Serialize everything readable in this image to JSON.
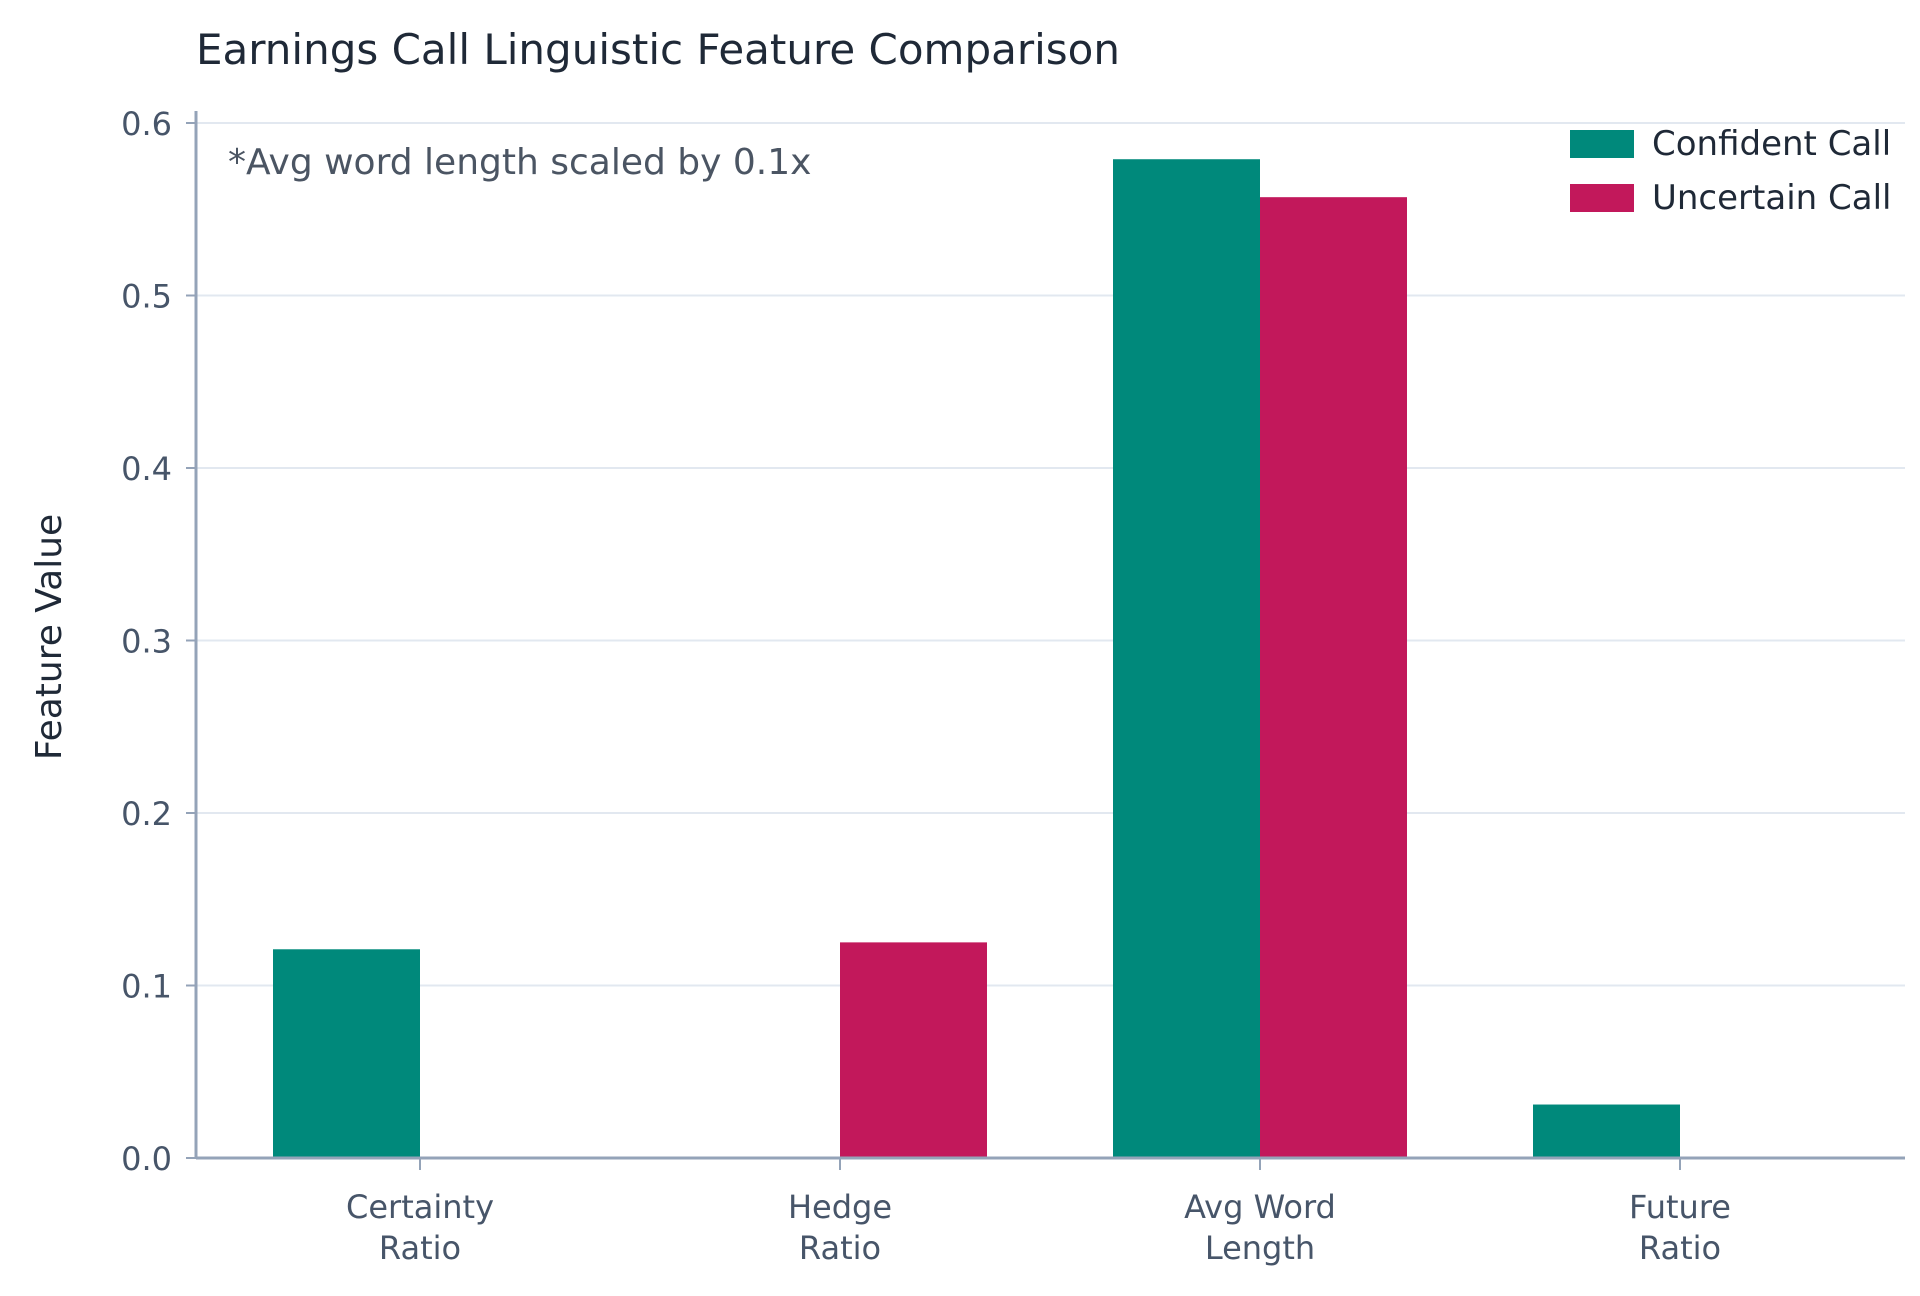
{
  "chart_data": {
    "type": "bar",
    "title": "Earnings Call Linguistic Feature Comparison",
    "xlabel": "",
    "ylabel": "Feature Value",
    "annotation": "*Avg word length scaled by 0.1x",
    "categories": [
      [
        "Certainty",
        "Ratio"
      ],
      [
        "Hedge",
        "Ratio"
      ],
      [
        "Avg Word",
        "Length"
      ],
      [
        "Future",
        "Ratio"
      ]
    ],
    "series": [
      {
        "name": "Confident Call",
        "color": "#00897B",
        "values": [
          0.121,
          0.0,
          0.579,
          0.031
        ]
      },
      {
        "name": "Uncertain Call",
        "color": "#C2185B",
        "values": [
          0.0,
          0.125,
          0.557,
          0.0
        ]
      }
    ],
    "ylim": [
      0,
      0.6
    ],
    "yticks": [
      "0.0",
      "0.1",
      "0.2",
      "0.3",
      "0.4",
      "0.5",
      "0.6"
    ],
    "grid": true,
    "legend_position": "top-right"
  },
  "colors": {
    "axis": "#94A3B8",
    "grid": "#E2E8F0",
    "tick_text": "#475569",
    "title_text": "#1F2937",
    "annotation_text": "#4B5563"
  }
}
